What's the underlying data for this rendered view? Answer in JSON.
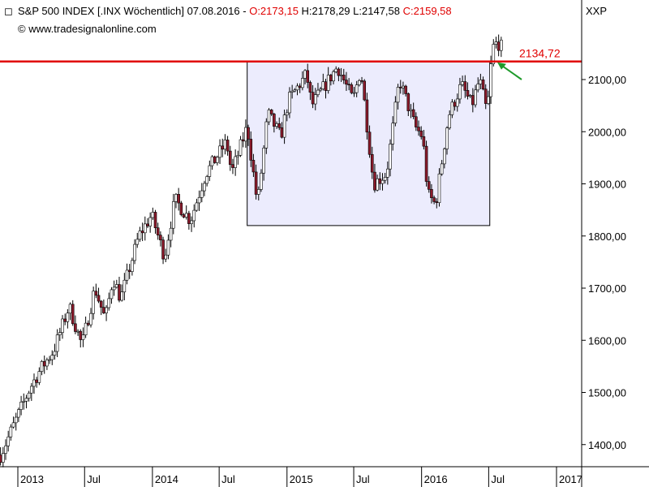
{
  "header": {
    "symbol_line": "S&P 500 INDEX [.INX  Wöchentlich] 07.08.2016",
    "separator": " - ",
    "open": "O:2173,15",
    "high": "H:2178,29",
    "low": "L:2147,58",
    "close": "C:2159,58",
    "copyright": "© www.tradesignalonline.com",
    "right_label": "XXP"
  },
  "colors": {
    "resistance": "#e00000",
    "box_fill": "#ececfd",
    "arrow": "#1e9a2a",
    "candle_up": "#ffffff",
    "candle_down": "#8b1a2b"
  },
  "chart_data": {
    "type": "candlestick",
    "title": "S&P 500 INDEX [.INX  Wöchentlich] 07.08.2016",
    "y_axis": {
      "min": 1350,
      "max": 2200,
      "ticks": [
        1400,
        1500,
        1600,
        1700,
        1800,
        1900,
        2000,
        2100
      ],
      "tick_labels": [
        "1400,00",
        "1500,00",
        "1600,00",
        "1700,00",
        "1800,00",
        "1900,00",
        "2000,00",
        "2100,00"
      ],
      "position": "right"
    },
    "x_axis": {
      "labels": [
        {
          "label": "2013",
          "date": "2013-01-01"
        },
        {
          "label": "Jul",
          "date": "2013-07-01"
        },
        {
          "label": "2014",
          "date": "2014-01-01"
        },
        {
          "label": "Jul",
          "date": "2014-07-01"
        },
        {
          "label": "2015",
          "date": "2015-01-01"
        },
        {
          "label": "Jul",
          "date": "2015-07-01"
        },
        {
          "label": "2016",
          "date": "2016-01-01"
        },
        {
          "label": "Jul",
          "date": "2016-07-01"
        },
        {
          "label": "2017",
          "date": "2017-01-01"
        }
      ]
    },
    "resistance": {
      "value": 2134.72,
      "label": "2134,72"
    },
    "range_box": {
      "start_date": "2014-09-15",
      "end_date": "2016-07-04",
      "top": 2134.72,
      "bottom": 1820
    },
    "close_path": [
      [
        "2012-11-15",
        1380
      ],
      [
        "2012-12-10",
        1420
      ],
      [
        "2013-01-07",
        1465
      ],
      [
        "2013-02-04",
        1510
      ],
      [
        "2013-03-04",
        1545
      ],
      [
        "2013-04-08",
        1580
      ],
      [
        "2013-05-20",
        1665
      ],
      [
        "2013-06-24",
        1590
      ],
      [
        "2013-07-29",
        1700
      ],
      [
        "2013-08-26",
        1640
      ],
      [
        "2013-09-16",
        1720
      ],
      [
        "2013-10-07",
        1680
      ],
      [
        "2013-11-25",
        1800
      ],
      [
        "2013-12-30",
        1840
      ],
      [
        "2014-02-03",
        1760
      ],
      [
        "2014-03-03",
        1870
      ],
      [
        "2014-04-14",
        1830
      ],
      [
        "2014-05-26",
        1920
      ],
      [
        "2014-07-21",
        1980
      ],
      [
        "2014-08-04",
        1920
      ],
      [
        "2014-09-15",
        2010
      ],
      [
        "2014-10-13",
        1860
      ],
      [
        "2014-11-10",
        2035
      ],
      [
        "2014-12-15",
        1990
      ],
      [
        "2015-01-05",
        2060
      ],
      [
        "2015-02-23",
        2110
      ],
      [
        "2015-03-09",
        2050
      ],
      [
        "2015-05-18",
        2125
      ],
      [
        "2015-06-29",
        2060
      ],
      [
        "2015-07-20",
        2120
      ],
      [
        "2015-08-24",
        1900
      ],
      [
        "2015-09-28",
        1920
      ],
      [
        "2015-11-02",
        2100
      ],
      [
        "2015-12-14",
        2010
      ],
      [
        "2016-01-04",
        1990
      ],
      [
        "2016-01-18",
        1880
      ],
      [
        "2016-02-08",
        1860
      ],
      [
        "2016-03-14",
        2030
      ],
      [
        "2016-04-18",
        2090
      ],
      [
        "2016-05-16",
        2050
      ],
      [
        "2016-06-06",
        2100
      ],
      [
        "2016-06-27",
        2035
      ],
      [
        "2016-07-11",
        2160
      ],
      [
        "2016-07-25",
        2172
      ],
      [
        "2016-08-07",
        2159.58
      ]
    ],
    "annotation": {
      "type": "arrow",
      "points_to_value": 2134.72
    }
  }
}
